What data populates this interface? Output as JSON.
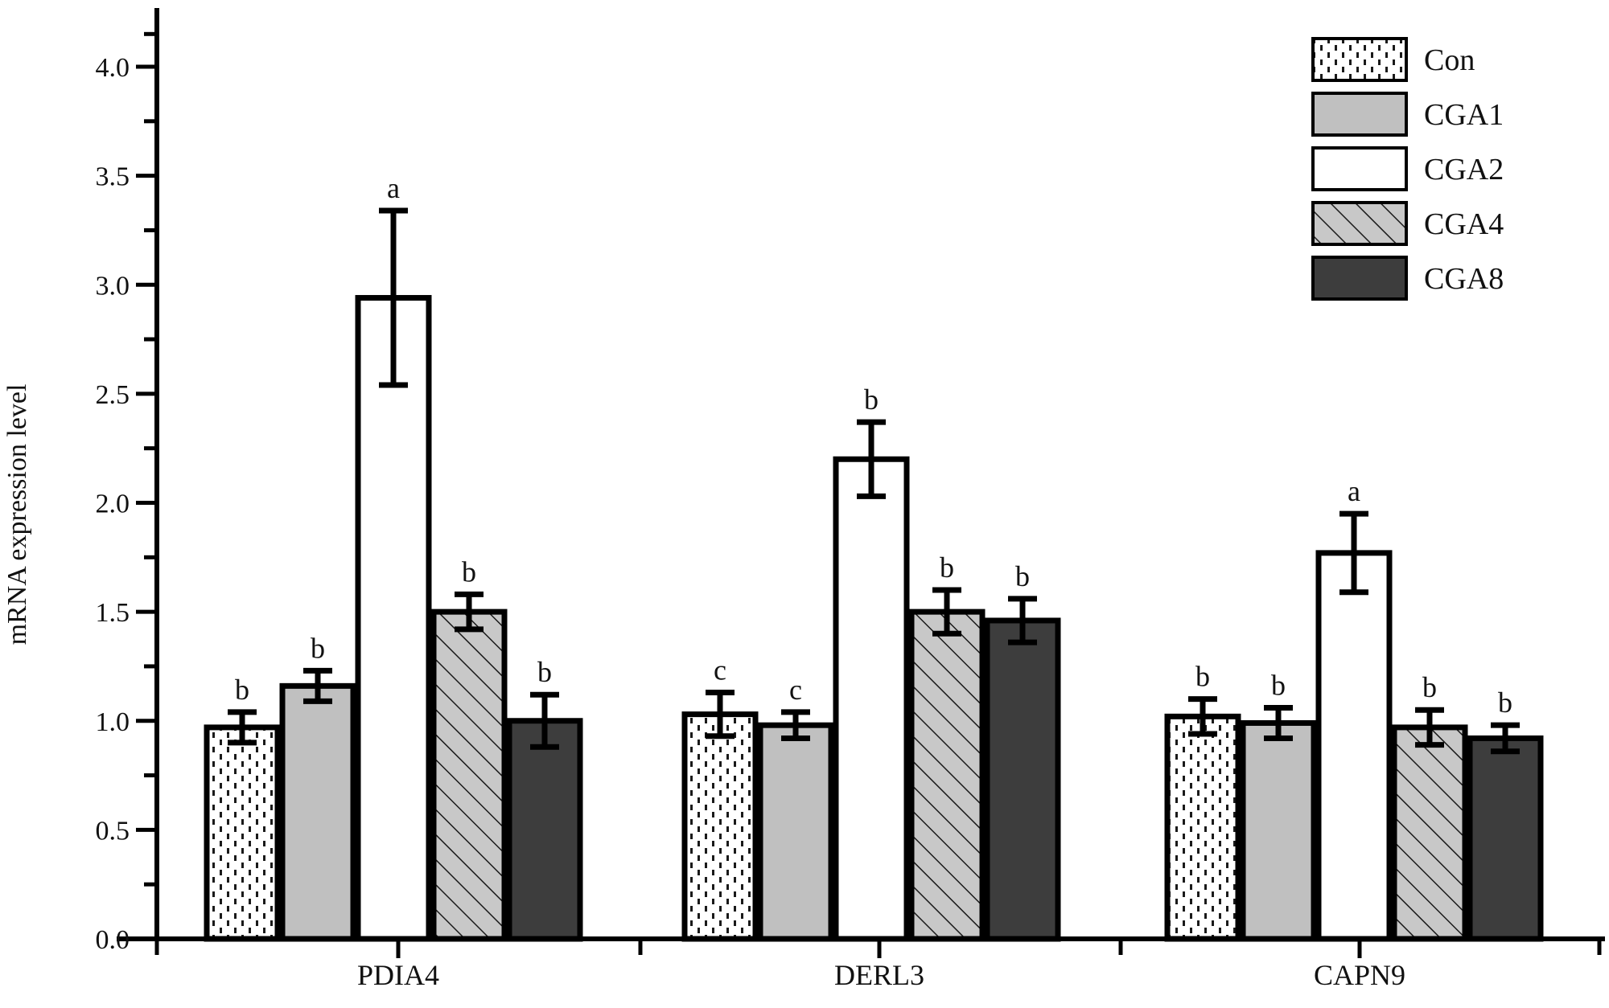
{
  "chart_data": {
    "type": "bar",
    "title": "",
    "xlabel": "",
    "ylabel": "mRNA expression level",
    "ylim": [
      0,
      4.2
    ],
    "yticks": [
      "0.0",
      "0.5",
      "1.0",
      "1.5",
      "2.0",
      "2.5",
      "3.0",
      "3.5",
      "4.0"
    ],
    "grid": false,
    "legend_position": "top-right",
    "categories": [
      "PDIA4",
      "DERL3",
      "CAPN9"
    ],
    "series": [
      {
        "name": "Con",
        "pattern": "dotted",
        "fill": "#ffffff",
        "values": [
          0.97,
          1.03,
          1.02
        ],
        "errors": [
          0.07,
          0.1,
          0.08
        ],
        "significance": [
          "b",
          "c",
          "b"
        ]
      },
      {
        "name": "CGA1",
        "pattern": "solid",
        "fill": "#c0c0c0",
        "values": [
          1.16,
          0.98,
          0.99
        ],
        "errors": [
          0.07,
          0.06,
          0.07
        ],
        "significance": [
          "b",
          "c",
          "b"
        ]
      },
      {
        "name": "CGA2",
        "pattern": "solid",
        "fill": "#ffffff",
        "values": [
          2.94,
          2.2,
          1.77
        ],
        "errors": [
          0.4,
          0.17,
          0.18
        ],
        "significance": [
          "a",
          "b",
          "a"
        ]
      },
      {
        "name": "CGA4",
        "pattern": "hatched",
        "fill": "#c8c8c8",
        "values": [
          1.5,
          1.5,
          0.97
        ],
        "errors": [
          0.08,
          0.1,
          0.08
        ],
        "significance": [
          "b",
          "b",
          "b"
        ]
      },
      {
        "name": "CGA8",
        "pattern": "solid",
        "fill": "#3d3d3d",
        "values": [
          1.0,
          1.46,
          0.92
        ],
        "errors": [
          0.12,
          0.1,
          0.06
        ],
        "significance": [
          "b",
          "b",
          "b"
        ]
      }
    ]
  }
}
